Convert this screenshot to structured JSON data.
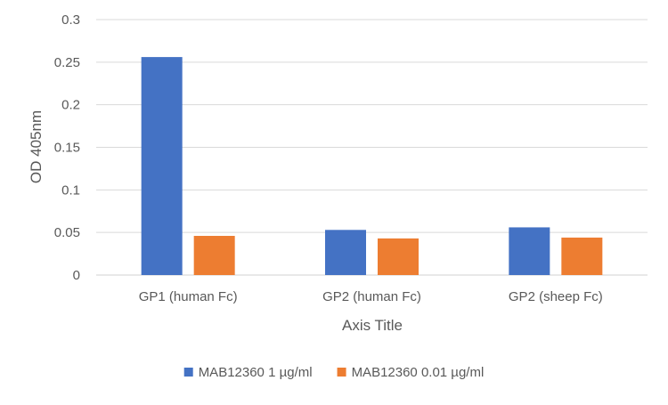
{
  "chart_data": {
    "type": "bar",
    "categories": [
      "GP1 (human Fc)",
      "GP2 (human Fc)",
      "GP2 (sheep Fc)"
    ],
    "series": [
      {
        "name": "MAB12360 1 µg/ml",
        "values": [
          0.256,
          0.053,
          0.056
        ],
        "color": "#4472C4"
      },
      {
        "name": "MAB12360 0.01 µg/ml",
        "values": [
          0.046,
          0.043,
          0.044
        ],
        "color": "#ED7D31"
      }
    ],
    "xlabel": "Axis Title",
    "ylabel": "OD 405nm",
    "ylim": [
      0,
      0.3
    ],
    "yticks": [
      0,
      0.05,
      0.1,
      0.15,
      0.2,
      0.25,
      0.3
    ],
    "ytick_labels": [
      "0",
      "0.05",
      "0.1",
      "0.15",
      "0.2",
      "0.25",
      "0.3"
    ],
    "grid": true,
    "legend_position": "bottom"
  }
}
